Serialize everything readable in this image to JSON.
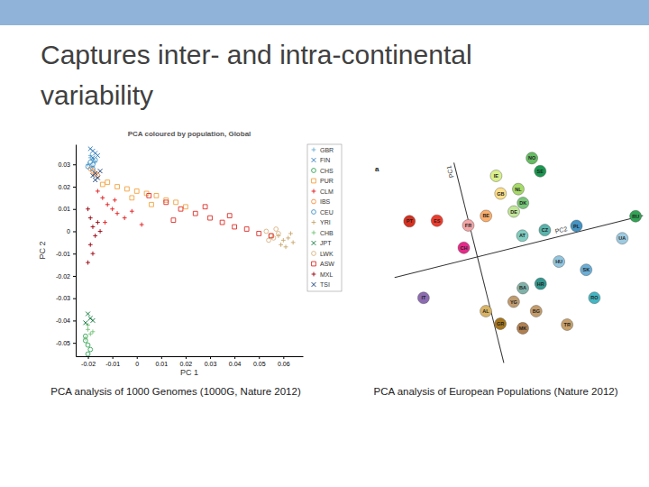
{
  "slide": {
    "title": "Captures inter- and intra-continental variability"
  },
  "chart_data": [
    {
      "type": "scatter",
      "title": "PCA coloured by population, Global",
      "caption": "PCA analysis of 1000 Genomes (1000G, Nature 2012)",
      "x_label": "PC 1",
      "y_label": "PC 2",
      "legend": "right",
      "xlim": [
        -0.025,
        0.068
      ],
      "ylim": [
        -0.056,
        0.039
      ],
      "xticks": [
        -0.02,
        -0.01,
        0,
        0.01,
        0.02,
        0.03,
        0.04,
        0.05,
        0.06
      ],
      "yticks": [
        -0.05,
        -0.04,
        -0.03,
        -0.02,
        -0.01,
        0,
        0.01,
        0.02,
        0.03
      ],
      "series": [
        {
          "name": "GBR",
          "color": "#6baed6",
          "marker": "plus",
          "x": [
            -0.019,
            -0.018,
            -0.02,
            -0.017,
            -0.019,
            -0.018
          ],
          "values": [
            0.034,
            0.032,
            0.03,
            0.031,
            0.033,
            0.029
          ]
        },
        {
          "name": "FIN",
          "color": "#2171b5",
          "marker": "cross",
          "x": [
            -0.018,
            -0.017,
            -0.019,
            -0.016,
            -0.018
          ],
          "values": [
            0.036,
            0.035,
            0.037,
            0.034,
            0.033
          ]
        },
        {
          "name": "CHS",
          "color": "#31a354",
          "marker": "circle",
          "x": [
            -0.021,
            -0.02,
            -0.019,
            -0.021,
            -0.02
          ],
          "values": [
            -0.049,
            -0.051,
            -0.053,
            -0.047,
            -0.055
          ]
        },
        {
          "name": "PUR",
          "color": "#f4a340",
          "marker": "square",
          "x": [
            -0.012,
            -0.008,
            -0.004,
            0,
            0.004,
            0.008,
            0.012,
            0.016,
            -0.014,
            -0.002,
            0.006,
            0.02
          ],
          "values": [
            0.022,
            0.02,
            0.019,
            0.018,
            0.017,
            0.016,
            0.014,
            0.013,
            0.021,
            0.015,
            0.012,
            0.011
          ]
        },
        {
          "name": "CLM",
          "color": "#e31a1c",
          "marker": "plus",
          "x": [
            -0.016,
            -0.014,
            -0.012,
            -0.01,
            -0.008,
            -0.005,
            -0.013,
            -0.009,
            -0.002,
            0.002
          ],
          "values": [
            0.018,
            0.015,
            0.012,
            0.01,
            0.008,
            0.006,
            0.004,
            0.014,
            0.009,
            0.003
          ]
        },
        {
          "name": "IBS",
          "color": "#fd8d3c",
          "marker": "circle",
          "x": [
            -0.018,
            -0.017,
            -0.019,
            -0.016
          ],
          "values": [
            0.027,
            0.026,
            0.028,
            0.025
          ]
        },
        {
          "name": "CEU",
          "color": "#4292c6",
          "marker": "circle",
          "x": [
            -0.019,
            -0.018,
            -0.017,
            -0.02,
            -0.018
          ],
          "values": [
            0.031,
            0.03,
            0.032,
            0.029,
            0.028
          ]
        },
        {
          "name": "YRI",
          "color": "#c7a76c",
          "marker": "plus",
          "x": [
            0.058,
            0.06,
            0.062,
            0.064,
            0.059,
            0.063,
            0.061
          ],
          "values": [
            -0.002,
            -0.004,
            -0.003,
            -0.005,
            -0.006,
            -0.001,
            -0.007
          ]
        },
        {
          "name": "CHB",
          "color": "#74c476",
          "marker": "plus",
          "x": [
            -0.02,
            -0.019,
            -0.021,
            -0.02,
            -0.018
          ],
          "values": [
            -0.044,
            -0.046,
            -0.048,
            -0.042,
            -0.045
          ]
        },
        {
          "name": "JPT",
          "color": "#006d2c",
          "marker": "cross",
          "x": [
            -0.019,
            -0.02,
            -0.018,
            -0.021
          ],
          "values": [
            -0.039,
            -0.037,
            -0.04,
            -0.041
          ]
        },
        {
          "name": "LWK",
          "color": "#d9b382",
          "marker": "circle",
          "x": [
            0.053,
            0.055,
            0.057,
            0.054,
            0.056,
            0.058
          ],
          "values": [
            0,
            -0.002,
            0.001,
            -0.004,
            -0.003,
            -0.001
          ]
        },
        {
          "name": "ASW",
          "color": "#de2d26",
          "marker": "square",
          "x": [
            0.005,
            0.012,
            0.018,
            0.024,
            0.03,
            0.035,
            0.04,
            0.045,
            0.05,
            0.055,
            0.028,
            0.038,
            0.015
          ],
          "values": [
            0.016,
            0.013,
            0.01,
            0.008,
            0.006,
            0.004,
            0.002,
            0.001,
            -0.001,
            -0.002,
            0.011,
            0.007,
            0.005
          ]
        },
        {
          "name": "MXL",
          "color": "#99000d",
          "marker": "plus",
          "x": [
            -0.02,
            -0.019,
            -0.018,
            -0.017,
            -0.016,
            -0.019,
            -0.015,
            -0.018,
            -0.02
          ],
          "values": [
            0.01,
            0.006,
            0.002,
            -0.002,
            0.004,
            -0.006,
            0,
            -0.01,
            -0.014
          ]
        },
        {
          "name": "TSI",
          "color": "#08306b",
          "marker": "cross",
          "x": [
            -0.017,
            -0.016,
            -0.018,
            -0.015,
            -0.017
          ],
          "values": [
            0.026,
            0.024,
            0.025,
            0.027,
            0.023
          ]
        }
      ]
    },
    {
      "type": "scatter",
      "panel_label": "a",
      "caption": "PCA analysis of European Populations (Nature 2012)",
      "x_label": "PC2",
      "y_label": "PC1",
      "tick_labels": false,
      "marker": "circle",
      "xlim": [
        -0.07,
        0.14
      ],
      "ylim": [
        -0.09,
        0.08
      ],
      "series": [
        {
          "name": "PT",
          "color": "#d7301f",
          "x": [
            -0.047
          ],
          "values": [
            0.042
          ]
        },
        {
          "name": "ES",
          "color": "#ef3b2c",
          "x": [
            -0.025
          ],
          "values": [
            0.037
          ]
        },
        {
          "name": "FR",
          "color": "#f4a6a6",
          "x": [
            -0.001
          ],
          "values": [
            0.027
          ]
        },
        {
          "name": "CH",
          "color": "#e7298a",
          "x": [
            -0.009
          ],
          "values": [
            0.01
          ]
        },
        {
          "name": "BE",
          "color": "#fdae6b",
          "x": [
            0.015
          ],
          "values": [
            0.031
          ]
        },
        {
          "name": "GB",
          "color": "#fee08b",
          "x": [
            0.031
          ],
          "values": [
            0.046
          ]
        },
        {
          "name": "IE",
          "color": "#d9ef8b",
          "x": [
            0.031
          ],
          "values": [
            0.061
          ]
        },
        {
          "name": "NL",
          "color": "#a6d96a",
          "x": [
            0.046
          ],
          "values": [
            0.046
          ]
        },
        {
          "name": "DE",
          "color": "#c2e699",
          "x": [
            0.038
          ],
          "values": [
            0.029
          ]
        },
        {
          "name": "SE",
          "color": "#1a9850",
          "x": [
            0.067
          ],
          "values": [
            0.056
          ]
        },
        {
          "name": "NO",
          "color": "#66bd63",
          "x": [
            0.063
          ],
          "values": [
            0.068
          ]
        },
        {
          "name": "DK",
          "color": "#78c679",
          "x": [
            0.047
          ],
          "values": [
            0.034
          ]
        },
        {
          "name": "AT",
          "color": "#80cdc1",
          "x": [
            0.04
          ],
          "values": [
            0.008
          ]
        },
        {
          "name": "CZ",
          "color": "#5ab4ac",
          "x": [
            0.059
          ],
          "values": [
            0.008
          ]
        },
        {
          "name": "PL",
          "color": "#4393c3",
          "x": [
            0.085
          ],
          "values": [
            0.005
          ]
        },
        {
          "name": "HU",
          "color": "#92c5de",
          "x": [
            0.064
          ],
          "values": [
            -0.02
          ]
        },
        {
          "name": "SK",
          "color": "#6baed6",
          "x": [
            0.084
          ],
          "values": [
            -0.032
          ]
        },
        {
          "name": "RO",
          "color": "#41b6c4",
          "x": [
            0.085
          ],
          "values": [
            -0.056
          ]
        },
        {
          "name": "RU",
          "color": "#31a354",
          "x": [
            0.134
          ],
          "values": [
            0.001
          ]
        },
        {
          "name": "UA",
          "color": "#9ecae1",
          "x": [
            0.119
          ],
          "values": [
            -0.014
          ]
        },
        {
          "name": "IT",
          "color": "#8c6bb1",
          "x": [
            -0.051
          ],
          "values": [
            -0.022
          ]
        },
        {
          "name": "YG",
          "color": "#bf9b6f",
          "x": [
            0.02
          ],
          "values": [
            -0.043
          ]
        },
        {
          "name": "GR",
          "color": "#a6761d",
          "x": [
            0.005
          ],
          "values": [
            -0.058
          ]
        },
        {
          "name": "AL",
          "color": "#d8b365",
          "x": [
            -0.004
          ],
          "values": [
            -0.045
          ]
        },
        {
          "name": "BG",
          "color": "#c49c6c",
          "x": [
            0.036
          ],
          "values": [
            -0.055
          ]
        },
        {
          "name": "HR",
          "color": "#35978f",
          "x": [
            0.045
          ],
          "values": [
            -0.034
          ]
        },
        {
          "name": "BA",
          "color": "#80b1a9",
          "x": [
            0.03
          ],
          "values": [
            -0.034
          ]
        },
        {
          "name": "MK",
          "color": "#b08050",
          "x": [
            0.022
          ],
          "values": [
            -0.066
          ]
        },
        {
          "name": "TR",
          "color": "#c7a06a",
          "x": [
            0.058
          ],
          "values": [
            -0.072
          ]
        }
      ]
    }
  ]
}
